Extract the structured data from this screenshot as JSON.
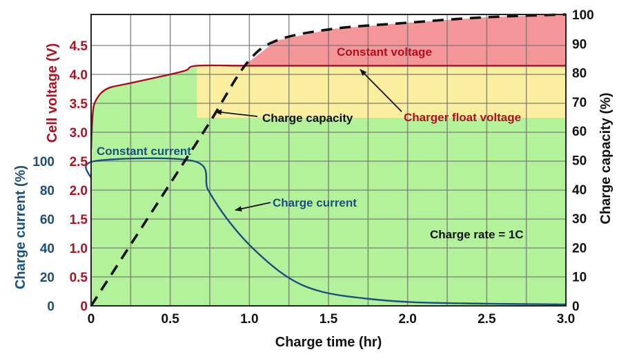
{
  "chart_data": {
    "type": "line",
    "title": "",
    "xlabel": "Charge time (hr)",
    "ylabel_left_voltage": "Cell voltage (V)",
    "ylabel_left_current": "Charge current (%)",
    "ylabel_right": "Charge capacity (%)",
    "xlim": [
      0,
      3.0
    ],
    "ylim_voltage": [
      0,
      5.0
    ],
    "ylim_current": [
      0,
      200
    ],
    "ylim_capacity": [
      0,
      100
    ],
    "grid": true,
    "x_ticks": [
      "0",
      "0.5",
      "1.0",
      "1.5",
      "2.0",
      "2.5",
      "3.0"
    ],
    "voltage_ticks": [
      "0",
      "0.5",
      "1.0",
      "1.5",
      "2.0",
      "2.5",
      "3.0",
      "3.5",
      "4.0",
      "4.5"
    ],
    "current_ticks": [
      "0",
      "20",
      "40",
      "60",
      "80",
      "100"
    ],
    "capacity_ticks": [
      "0",
      "10",
      "20",
      "30",
      "40",
      "50",
      "60",
      "70",
      "80",
      "90",
      "100"
    ],
    "series": [
      {
        "name": "Cell voltage",
        "axis": "voltage",
        "color": "#A01020",
        "style": "solid",
        "x": [
          0,
          0.01,
          0.03,
          0.1,
          0.25,
          0.5,
          0.6,
          0.67,
          1.0,
          1.5,
          2.0,
          2.5,
          3.0
        ],
        "values": [
          2.7,
          3.3,
          3.55,
          3.75,
          3.85,
          4.0,
          4.07,
          4.15,
          4.15,
          4.15,
          4.15,
          4.15,
          4.15
        ]
      },
      {
        "name": "Charge current",
        "axis": "current",
        "color": "#1A4E80",
        "style": "solid",
        "x": [
          0,
          0.02,
          0.65,
          0.74,
          0.86,
          1.02,
          1.24,
          1.45,
          1.74,
          2.04,
          2.5,
          3.0
        ],
        "values": [
          88,
          100,
          100,
          80,
          60,
          40,
          20,
          10,
          5,
          2.5,
          1.5,
          1
        ]
      },
      {
        "name": "Charge capacity",
        "axis": "capacity",
        "color": "#000000",
        "style": "dashed",
        "x": [
          0,
          0.25,
          0.5,
          0.75,
          0.98,
          1.17,
          1.52,
          1.96,
          2.48,
          3.0
        ],
        "values": [
          0,
          21,
          42,
          63,
          83,
          91,
          95,
          97,
          99,
          100
        ]
      }
    ],
    "regions": [
      {
        "name": "Constant current",
        "color": "#B3F29A"
      },
      {
        "name": "Charger float voltage",
        "color": "#FBEE9E"
      },
      {
        "name": "Constant voltage",
        "color": "#F5979A"
      }
    ],
    "annotations": [
      {
        "text": "Constant current",
        "color": "#1A4E80"
      },
      {
        "text": "Constant voltage",
        "color": "#B01020"
      },
      {
        "text": "Charge capacity",
        "color": "#111111"
      },
      {
        "text": "Charger float voltage",
        "color": "#B01020"
      },
      {
        "text": "Charge current",
        "color": "#1A4E80"
      },
      {
        "text": "Charge rate = 1C",
        "color": "#111111"
      }
    ]
  },
  "colors": {
    "voltage": "#B01020",
    "current": "#1A4E80",
    "capacity": "#111111",
    "green_fill": "#B3F29A",
    "yellow_fill": "#FBEE9E",
    "red_fill": "#F5979A",
    "grid": "#707070"
  }
}
